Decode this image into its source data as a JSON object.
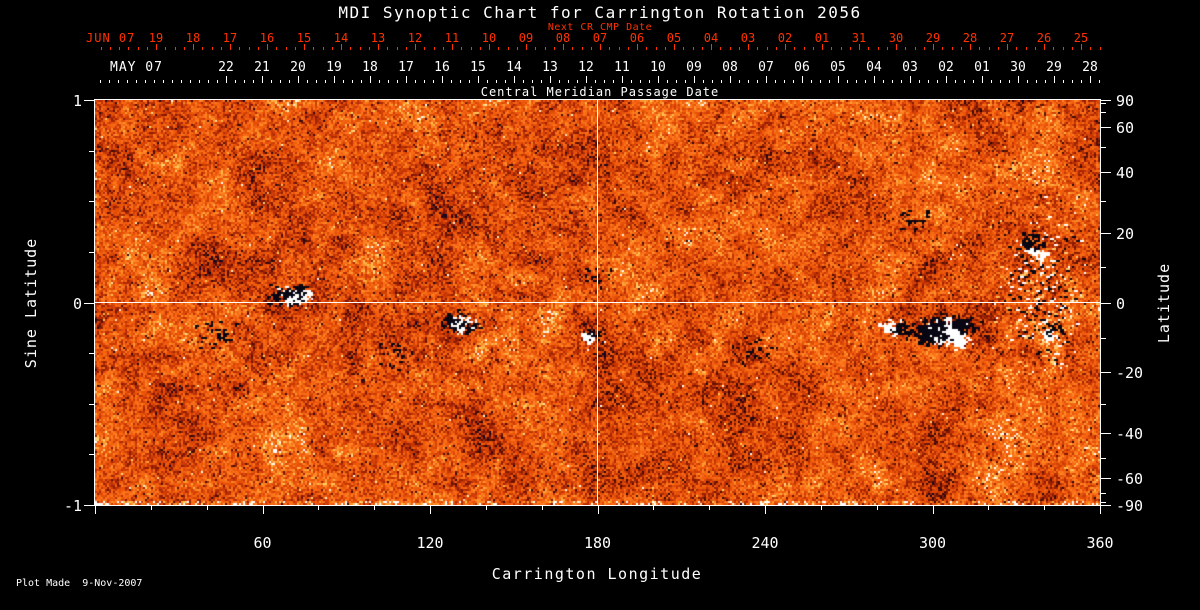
{
  "title": "MDI Synoptic Chart for Carrington Rotation 2056",
  "colors": {
    "background": "#000000",
    "foreground": "#ffffff",
    "date_red": "#ff3200",
    "crosshair": "#ffffff"
  },
  "top_axis": {
    "next_cr_label": "Next CR CMP Date",
    "red_prefix": "JUN 07",
    "red_days": [
      "19",
      "18",
      "17",
      "16",
      "15",
      "14",
      "13",
      "12",
      "11",
      "10",
      "09",
      "08",
      "07",
      "06",
      "05",
      "04",
      "03",
      "02",
      "01",
      "31",
      "30",
      "29",
      "28",
      "27",
      "26",
      "25"
    ],
    "white_prefix": "MAY 07",
    "white_days": [
      "22",
      "21",
      "20",
      "19",
      "18",
      "17",
      "16",
      "15",
      "14",
      "13",
      "12",
      "11",
      "10",
      "09",
      "08",
      "07",
      "06",
      "05",
      "04",
      "03",
      "02",
      "01",
      "30",
      "29",
      "28"
    ],
    "axis_label": "Central Meridian Passage Date"
  },
  "left_axis": {
    "label": "Sine Latitude",
    "tick_labels": [
      "1",
      "0",
      "-1"
    ]
  },
  "right_axis": {
    "label": "Latitude",
    "tick_labels": [
      "90",
      "60",
      "40",
      "20",
      "0",
      "-20",
      "-40",
      "-60",
      "-90"
    ]
  },
  "bottom_axis": {
    "label": "Carrington Longitude",
    "tick_labels": [
      "60",
      "120",
      "180",
      "240",
      "300",
      "360"
    ]
  },
  "footer": "Plot Made  9-Nov-2007",
  "chart_data": {
    "type": "heatmap",
    "title": "MDI Synoptic Chart for Carrington Rotation 2056",
    "xlabel": "Carrington Longitude",
    "ylabel_left": "Sine Latitude",
    "ylabel_right": "Latitude",
    "x_range": [
      0,
      360
    ],
    "y_range_sine_latitude": [
      -1,
      1
    ],
    "x_major_ticks": [
      60,
      120,
      180,
      240,
      300,
      360
    ],
    "x_minor_tick_step": 20,
    "left_ticks_sine_latitude": [
      1,
      0,
      -1
    ],
    "right_ticks_latitude": [
      90,
      60,
      40,
      20,
      0,
      -20,
      -40,
      -60,
      -90
    ],
    "crosshair": {
      "longitude": 180,
      "sine_latitude": 0
    },
    "description": "Line-of-sight photospheric magnetogram synoptic map for Carrington rotation 2056. Background is weak-field salt-and-pepper noise in orange/red tones with scattered dark specks; bipolar active regions appear as white (positive) and black (negative) patches.",
    "palette": [
      "#060628",
      "#3e0a06",
      "#841804",
      "#be3005",
      "#e24c08",
      "#f3600e",
      "#fc761c",
      "#fd992e",
      "#fece62",
      "#ffffff"
    ],
    "active_regions": [
      {
        "longitude": 72,
        "latitude": 2,
        "size": "moderate",
        "polarity": "bipolar"
      },
      {
        "longitude": 130,
        "latitude": -6,
        "size": "moderate",
        "polarity": "bipolar"
      },
      {
        "longitude": 176,
        "latitude": -10,
        "size": "small",
        "polarity": "bipolar"
      },
      {
        "longitude": 285,
        "latitude": -7,
        "size": "moderate",
        "polarity": "bipolar"
      },
      {
        "longitude": 304,
        "latitude": -8,
        "size": "large",
        "polarity": "bipolar"
      },
      {
        "longitude": 338,
        "latitude": 3,
        "size": "dispersed",
        "polarity": "mixed"
      }
    ]
  }
}
